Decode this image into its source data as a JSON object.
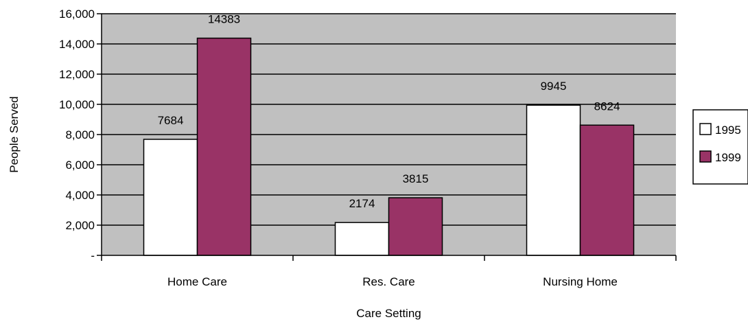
{
  "chart_data": {
    "type": "bar",
    "title": "",
    "xlabel": "Care Setting",
    "ylabel": "People Served",
    "categories": [
      "Home Care",
      "Res. Care",
      "Nursing Home"
    ],
    "series": [
      {
        "name": "1995",
        "values": [
          7684,
          2174,
          9945
        ],
        "color": "#ffffff"
      },
      {
        "name": "1999",
        "values": [
          14383,
          3815,
          8624
        ],
        "color": "#993366"
      }
    ],
    "ylim": [
      0,
      16000
    ],
    "yticks": [
      0,
      2000,
      4000,
      6000,
      8000,
      10000,
      12000,
      14000,
      16000
    ],
    "ytick_labels": [
      "-",
      "2,000",
      "4,000",
      "6,000",
      "8,000",
      "10,000",
      "12,000",
      "14,000",
      "16,000"
    ],
    "grid": true,
    "plot_background": "#c0c0c0",
    "legend_position": "right"
  }
}
